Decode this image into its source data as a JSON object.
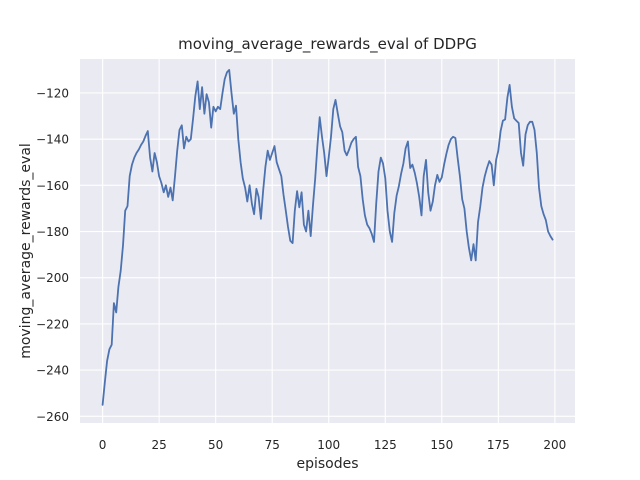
{
  "chart_data": {
    "type": "line",
    "title": "moving_average_rewards_eval of DDPG",
    "xlabel": "episodes",
    "ylabel": "moving_average_rewards_eval",
    "x_start": 0,
    "x_step": 1,
    "values": [
      -255,
      -245,
      -236,
      -231,
      -229,
      -211,
      -215,
      -204,
      -197,
      -186,
      -171,
      -169,
      -156,
      -151,
      -148,
      -146,
      -144.5,
      -142.5,
      -141,
      -138.5,
      -136.5,
      -148,
      -154,
      -146,
      -150,
      -156,
      -159,
      -163,
      -160,
      -165,
      -161,
      -166.5,
      -156,
      -145,
      -136,
      -134,
      -144,
      -139,
      -141,
      -140,
      -131,
      -121.5,
      -115,
      -127,
      -117.5,
      -129,
      -120.5,
      -124,
      -135,
      -126,
      -128,
      -126,
      -127,
      -120,
      -114,
      -111,
      -110,
      -120,
      -129,
      -125.5,
      -140,
      -150,
      -157,
      -161,
      -167,
      -160,
      -168,
      -172.5,
      -161.5,
      -165,
      -174.5,
      -162,
      -152,
      -145,
      -149,
      -146,
      -143,
      -150,
      -153,
      -156,
      -164,
      -171,
      -178,
      -184,
      -185,
      -171,
      -162.5,
      -169.5,
      -163,
      -177,
      -180,
      -171,
      -182,
      -169,
      -157,
      -143,
      -130.5,
      -139,
      -146,
      -156,
      -148,
      -139,
      -127,
      -123,
      -129,
      -134.5,
      -137,
      -145,
      -147,
      -144.5,
      -141.5,
      -140,
      -139,
      -152,
      -156,
      -166,
      -173,
      -177,
      -178.5,
      -181,
      -184.5,
      -168,
      -154,
      -148,
      -150.5,
      -157,
      -171,
      -180,
      -184.5,
      -172,
      -164.5,
      -160.5,
      -155,
      -150.5,
      -144,
      -141,
      -152.5,
      -151,
      -154.5,
      -159,
      -165,
      -173,
      -156,
      -149,
      -163,
      -171,
      -167,
      -160,
      -155.5,
      -158.5,
      -156.5,
      -151,
      -146.5,
      -142.5,
      -140,
      -139,
      -139.5,
      -148,
      -156,
      -166,
      -170,
      -180,
      -187,
      -192.5,
      -185.5,
      -192.5,
      -176,
      -169,
      -161,
      -156,
      -152.5,
      -149.5,
      -151,
      -160,
      -149,
      -145,
      -136.5,
      -132,
      -131.5,
      -122,
      -116.5,
      -126,
      -131,
      -132,
      -133,
      -146,
      -151.5,
      -138,
      -134,
      -132.5,
      -132.5,
      -136,
      -146,
      -161,
      -169,
      -172.5,
      -175,
      -180,
      -182,
      -183.5
    ],
    "xlim": [
      -10,
      208.9
    ],
    "ylim": [
      -262.9,
      -105.3
    ],
    "xticks": {
      "values": [
        0,
        25,
        50,
        75,
        100,
        125,
        150,
        175,
        200
      ],
      "labels": [
        "0",
        "25",
        "50",
        "75",
        "100",
        "125",
        "150",
        "175",
        "200"
      ]
    },
    "yticks": {
      "values": [
        -260,
        -240,
        -220,
        -200,
        -180,
        -160,
        -140,
        -120
      ],
      "labels": [
        "−260",
        "−240",
        "−220",
        "−200",
        "−180",
        "−160",
        "−140",
        "−120"
      ]
    },
    "grid": true,
    "legend_position": "none",
    "style": {
      "line_color": "#4c72b0",
      "line_width": 1.8,
      "axes_background": "#eaeaf2",
      "grid_color": "#ffffff",
      "text_color": "#262626",
      "figure_background": "#ffffff"
    }
  }
}
